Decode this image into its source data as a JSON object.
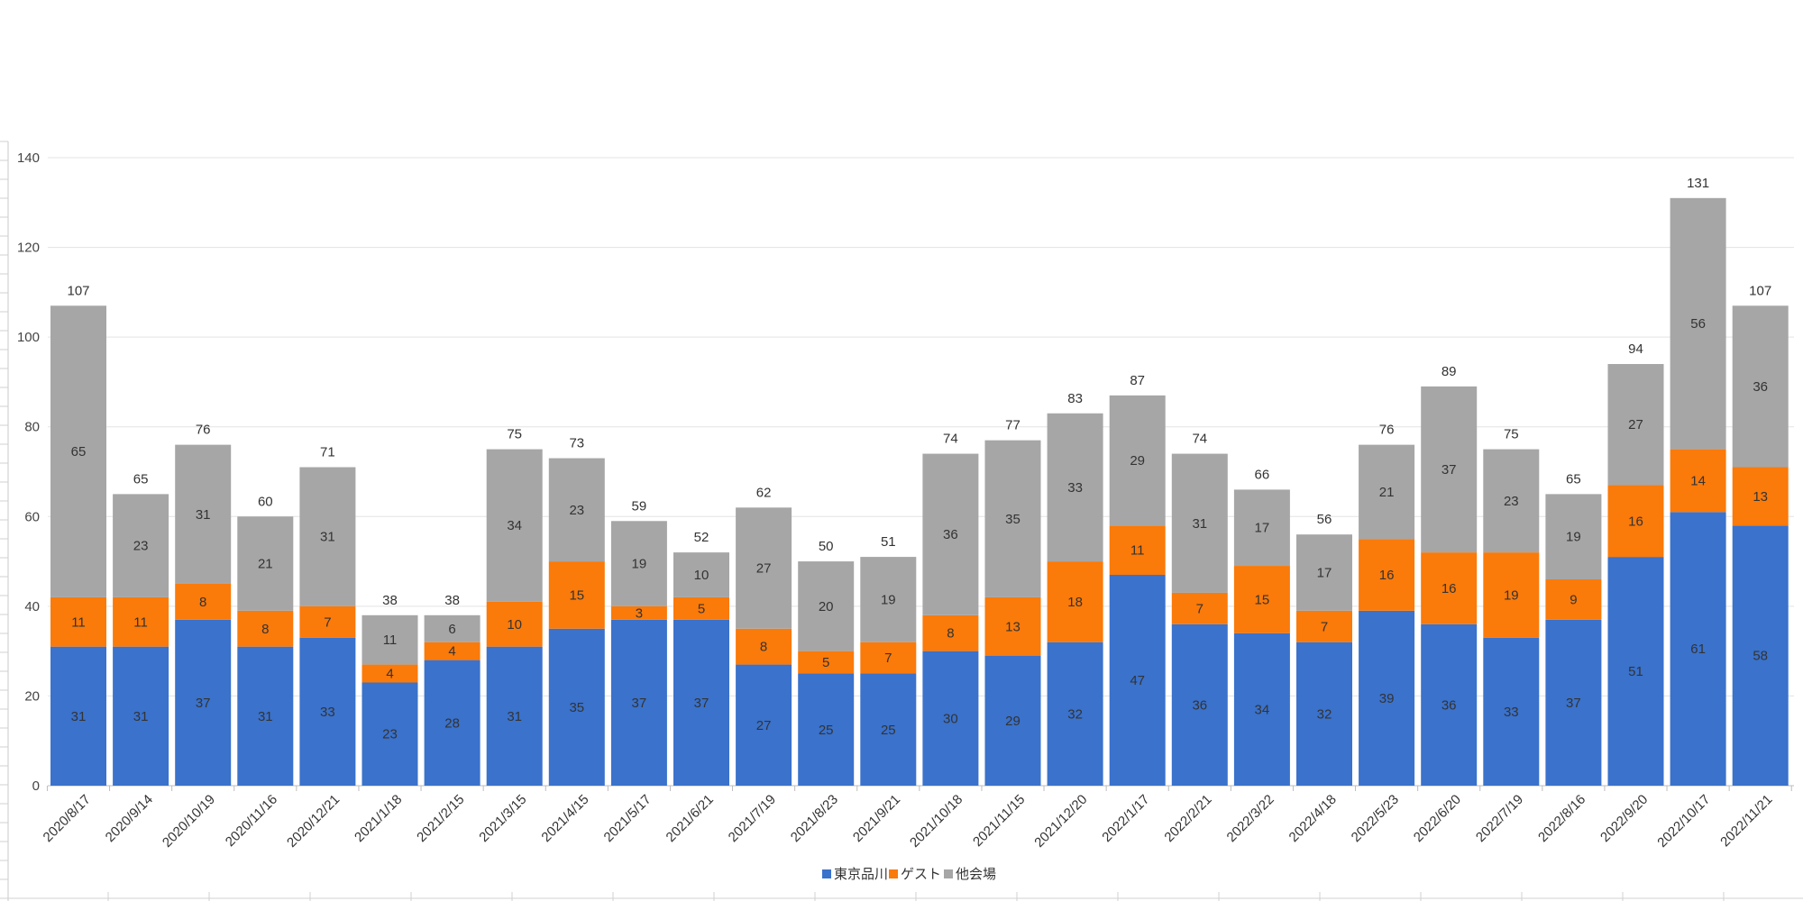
{
  "chart_data": {
    "type": "bar",
    "stacked": true,
    "categories": [
      "2020/8/17",
      "2020/9/14",
      "2020/10/19",
      "2020/11/16",
      "2020/12/21",
      "2021/1/18",
      "2021/2/15",
      "2021/3/15",
      "2021/4/15",
      "2021/5/17",
      "2021/6/21",
      "2021/7/19",
      "2021/8/23",
      "2021/9/21",
      "2021/10/18",
      "2021/11/15",
      "2021/12/20",
      "2022/1/17",
      "2022/2/21",
      "2022/3/22",
      "2022/4/18",
      "2022/5/23",
      "2022/6/20",
      "2022/7/19",
      "2022/8/16",
      "2022/9/20",
      "2022/10/17",
      "2022/11/21"
    ],
    "series": [
      {
        "name": "東京品川",
        "color": "#3a72cc",
        "values": [
          31,
          31,
          37,
          31,
          33,
          23,
          28,
          31,
          35,
          37,
          37,
          27,
          25,
          25,
          30,
          29,
          32,
          47,
          36,
          34,
          32,
          39,
          36,
          33,
          37,
          51,
          61,
          58
        ]
      },
      {
        "name": "ゲスト",
        "color": "#fa7a0a",
        "values": [
          11,
          11,
          8,
          8,
          7,
          4,
          4,
          10,
          15,
          3,
          5,
          8,
          5,
          7,
          8,
          13,
          18,
          11,
          7,
          15,
          7,
          16,
          16,
          19,
          9,
          16,
          14,
          13
        ]
      },
      {
        "name": "他会場",
        "color": "#a6a6a6",
        "values": [
          65,
          23,
          31,
          21,
          31,
          11,
          6,
          34,
          23,
          19,
          10,
          27,
          20,
          19,
          36,
          35,
          33,
          29,
          31,
          17,
          17,
          21,
          37,
          23,
          19,
          27,
          56,
          36
        ]
      }
    ],
    "totals": [
      107,
      65,
      76,
      60,
      71,
      38,
      38,
      75,
      73,
      59,
      52,
      62,
      50,
      51,
      74,
      77,
      83,
      87,
      74,
      66,
      56,
      76,
      89,
      75,
      65,
      94,
      131,
      107
    ],
    "ylim": [
      0,
      140
    ],
    "yticks": [
      0,
      20,
      40,
      60,
      80,
      100,
      120,
      140
    ],
    "grid": true,
    "legend_position": "bottom",
    "title": "",
    "xlabel": "",
    "ylabel": ""
  }
}
